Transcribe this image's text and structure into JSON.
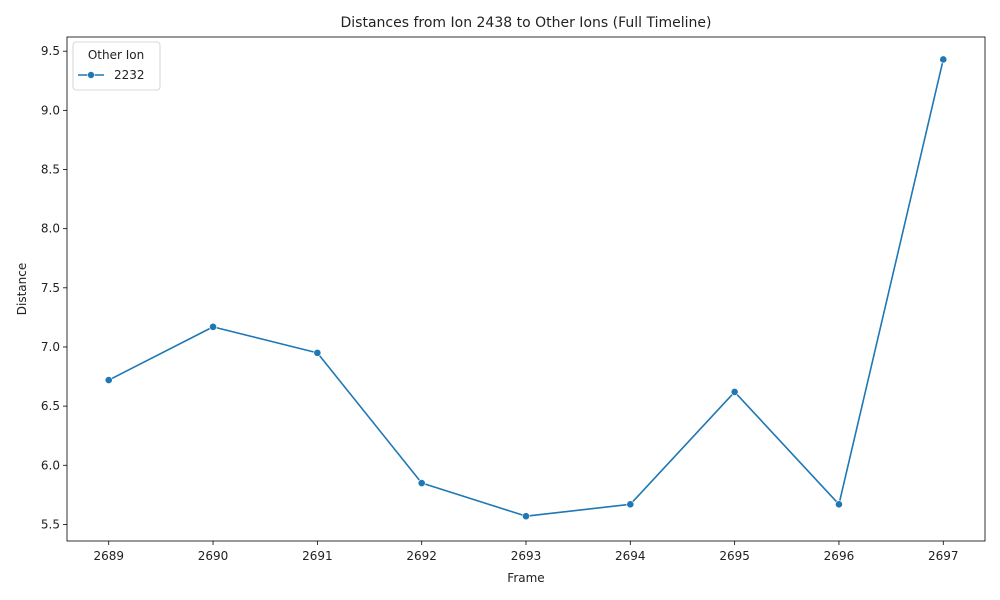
{
  "chart_data": {
    "type": "line",
    "title": "Distances from Ion 2438 to Other Ions (Full Timeline)",
    "xlabel": "Frame",
    "ylabel": "Distance",
    "x": [
      2689,
      2690,
      2691,
      2692,
      2693,
      2694,
      2695,
      2696,
      2697
    ],
    "x_tick_labels": [
      "2689",
      "2690",
      "2691",
      "2692",
      "2693",
      "2694",
      "2695",
      "2696",
      "2697"
    ],
    "y_tick_values": [
      5.5,
      6.0,
      6.5,
      7.0,
      7.5,
      8.0,
      8.5,
      9.0,
      9.5
    ],
    "y_tick_labels": [
      "5.5",
      "6.0",
      "6.5",
      "7.0",
      "7.5",
      "8.0",
      "8.5",
      "9.0",
      "9.5"
    ],
    "xlim": [
      2688.6,
      2697.4
    ],
    "ylim": [
      5.36,
      9.62
    ],
    "grid": false,
    "legend": {
      "title": "Other Ion",
      "placement": "top-left"
    },
    "series": [
      {
        "name": "2232",
        "color": "#1f77b4",
        "marker": "circle",
        "values": [
          6.72,
          7.17,
          6.95,
          5.85,
          5.57,
          5.67,
          6.62,
          5.67,
          9.43
        ]
      }
    ]
  }
}
